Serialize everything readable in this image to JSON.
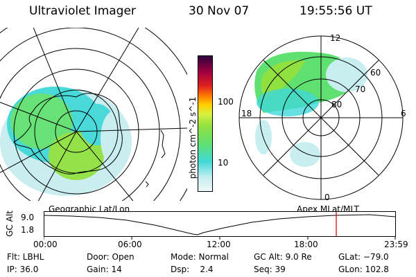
{
  "header": {
    "title": "Ultraviolet Imager",
    "date": "30 Nov 07",
    "time": "19:55:56 UT"
  },
  "colorbar": {
    "label": "photon cm^-2 s^-1",
    "ticks": [
      "100",
      "10"
    ],
    "colors": [
      "#f0f8f8",
      "#c8eef0",
      "#40d8d8",
      "#60e070",
      "#90e040",
      "#d8f040",
      "#ffd000",
      "#ff8000",
      "#e02020",
      "#a00040",
      "#300040"
    ]
  },
  "right_polar": {
    "labels": {
      "top": "12",
      "bottom": "0",
      "left": "18",
      "right": "6",
      "ring_60": "60",
      "ring_70": "70",
      "ring_80": "80"
    }
  },
  "plot": {
    "left_label": "Geographic Lat/Lon",
    "right_label": "Apex MLat/MLT",
    "y_axis_label": "GC Alt",
    "y_ticks": [
      "9.0",
      "1.8"
    ],
    "x_ticks": [
      "00:00",
      "06:00",
      "12:00",
      "18:00",
      "23:59"
    ],
    "marker_color": "#cc0000"
  },
  "info": {
    "row1": {
      "flt": "Flt: LBHL",
      "door": "Door: Open",
      "mode": "Mode: Normal",
      "gcalt": "GC Alt: 9.0 Re",
      "glat": "GLat: −79.0"
    },
    "row2": {
      "ip": "IP: 36.0",
      "gain": "Gain: 14",
      "dsp": "Dsp:    2.4",
      "seq": "Seq: 39",
      "glon": "GLon: 102.8"
    }
  }
}
